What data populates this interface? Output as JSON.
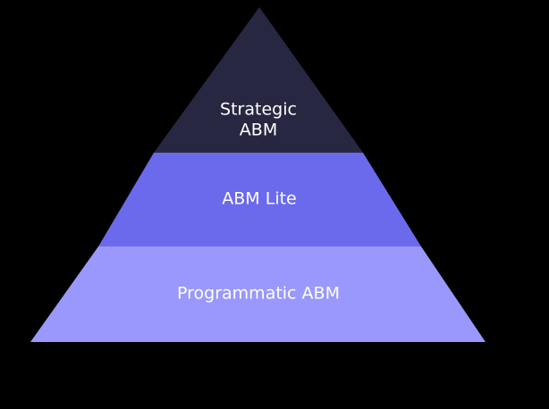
{
  "diagram": {
    "type": "pyramid",
    "tiers": [
      {
        "label_lines": [
          "Strategic",
          "ABM"
        ],
        "color": "#282741"
      },
      {
        "label_lines": [
          "ABM Lite"
        ],
        "color": "#6b6aec"
      },
      {
        "label_lines": [
          "Programmatic ABM"
        ],
        "color": "#9a98fc"
      }
    ]
  }
}
